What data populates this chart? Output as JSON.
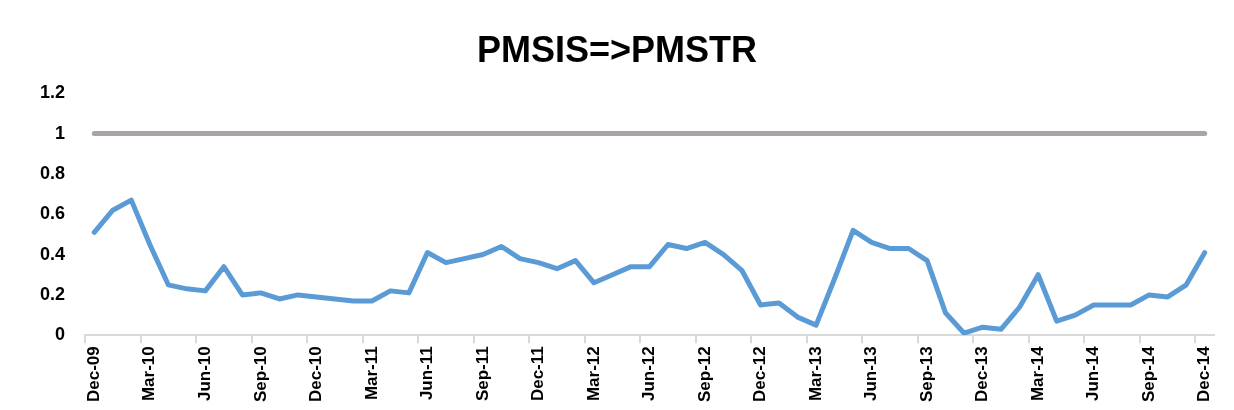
{
  "chart_data": {
    "type": "line",
    "title": "PMSIS=>PMSTR",
    "categories": [
      "Dec-09",
      null,
      null,
      "Mar-10",
      null,
      null,
      "Jun-10",
      null,
      null,
      "Sep-10",
      null,
      null,
      "Dec-10",
      null,
      null,
      "Mar-11",
      null,
      null,
      "Jun-11",
      null,
      null,
      "Sep-11",
      null,
      null,
      "Dec-11",
      null,
      null,
      "Mar-12",
      null,
      null,
      "Jun-12",
      null,
      null,
      "Sep-12",
      null,
      null,
      "Dec-12",
      null,
      null,
      "Mar-13",
      null,
      null,
      "Jun-13",
      null,
      null,
      "Sep-13",
      null,
      null,
      "Dec-13",
      null,
      null,
      "Mar-14",
      null,
      null,
      "Jun-14",
      null,
      null,
      "Sep-14",
      null,
      null,
      "Dec-14"
    ],
    "series": [
      {
        "color": "#5b9bd5",
        "values": [
          0.51,
          0.62,
          0.67,
          0.45,
          0.25,
          0.23,
          0.22,
          0.34,
          0.2,
          0.21,
          0.18,
          0.2,
          0.19,
          0.18,
          0.17,
          0.17,
          0.22,
          0.21,
          0.41,
          0.36,
          0.38,
          0.4,
          0.44,
          0.38,
          0.36,
          0.33,
          0.37,
          0.26,
          0.3,
          0.34,
          0.34,
          0.45,
          0.43,
          0.46,
          0.4,
          0.32,
          0.15,
          0.16,
          0.09,
          0.05,
          0.28,
          0.52,
          0.46,
          0.43,
          0.43,
          0.37,
          0.11,
          0.01,
          0.04,
          0.03,
          0.14,
          0.3,
          0.07,
          0.1,
          0.15,
          0.15,
          0.15,
          0.2,
          0.19,
          0.25,
          0.41
        ]
      },
      {
        "color": "#aaa5a3",
        "values": [
          1,
          1,
          1,
          1,
          1,
          1,
          1,
          1,
          1,
          1,
          1,
          1,
          1,
          1,
          1,
          1,
          1,
          1,
          1,
          1,
          1,
          1,
          1,
          1,
          1,
          1,
          1,
          1,
          1,
          1,
          1,
          1,
          1,
          1,
          1,
          1,
          1,
          1,
          1,
          1,
          1,
          1,
          1,
          1,
          1,
          1,
          1,
          1,
          1,
          1,
          1,
          1,
          1,
          1,
          1,
          1,
          1,
          1,
          1,
          1,
          1
        ]
      }
    ],
    "ylim": [
      0,
      1.2
    ],
    "yticks": [
      0,
      0.2,
      0.4,
      0.6,
      0.8,
      1,
      1.2
    ],
    "grid": false,
    "legend": false,
    "marker": "none"
  }
}
